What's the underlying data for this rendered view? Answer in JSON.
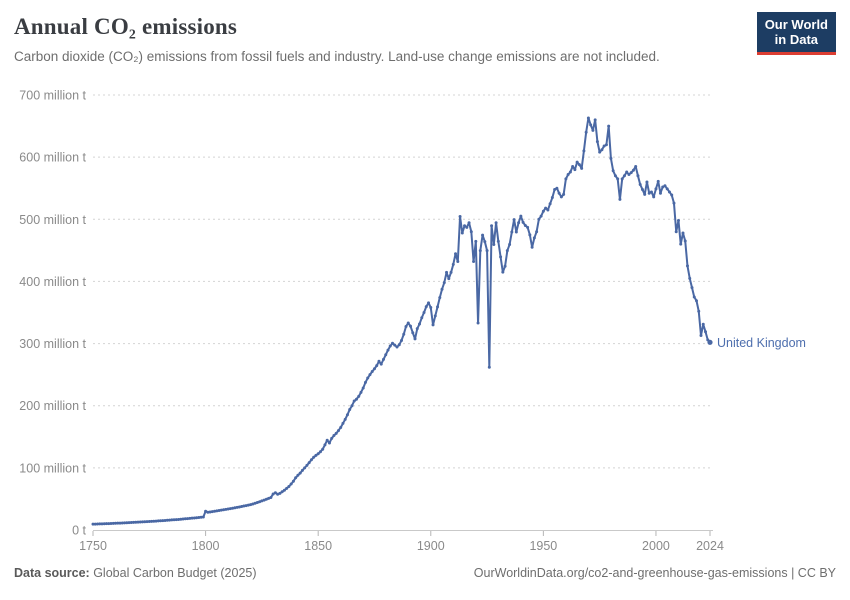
{
  "header": {
    "title": "Annual CO₂ emissions",
    "subtitle": "Carbon dioxide (CO₂) emissions from fossil fuels and industry. Land-use change emissions are not included.",
    "logo_line1": "Our World",
    "logo_line2": "in Data",
    "logo_bg": "#1d3d63",
    "logo_accent": "#dc3e32"
  },
  "footer": {
    "source_label": "Data source:",
    "source_value": " Global Carbon Budget (2025)",
    "right": "OurWorldinData.org/co2-and-greenhouse-gas-emissions | CC BY"
  },
  "chart_data": {
    "type": "line",
    "title": "Annual CO₂ emissions",
    "unit": "million tonnes of CO₂",
    "xlim": [
      1750,
      2024
    ],
    "ylim": [
      0,
      700
    ],
    "grid": "horizontal dashed",
    "legend_position": "end-of-line label",
    "x_ticks": [
      1750,
      1800,
      1850,
      1900,
      1950,
      2000,
      2024
    ],
    "y_ticks": [
      {
        "value": 0,
        "label": "0 t"
      },
      {
        "value": 100,
        "label": "100 million t"
      },
      {
        "value": 200,
        "label": "200 million t"
      },
      {
        "value": 300,
        "label": "300 million t"
      },
      {
        "value": 400,
        "label": "400 million t"
      },
      {
        "value": 500,
        "label": "500 million t"
      },
      {
        "value": 600,
        "label": "600 million t"
      },
      {
        "value": 700,
        "label": "700 million t"
      }
    ],
    "series": [
      {
        "name": "United Kingdom",
        "color": "#4a68a4",
        "label_color": "#4e6fae",
        "start_year": 1750,
        "values": [
          9.4,
          9.5,
          9.6,
          9.8,
          9.9,
          10,
          10.2,
          10.3,
          10.5,
          10.6,
          10.8,
          11,
          11.1,
          11.3,
          11.5,
          11.6,
          11.8,
          12,
          12.2,
          12.4,
          12.6,
          12.8,
          13,
          13.2,
          13.4,
          13.6,
          13.9,
          14.1,
          14.3,
          14.6,
          14.8,
          15.1,
          15.3,
          15.6,
          15.9,
          16.2,
          16.4,
          16.7,
          17,
          17.4,
          17.7,
          18,
          18.4,
          18.7,
          19.1,
          19.4,
          19.8,
          20.2,
          20.6,
          21,
          30.1,
          28.5,
          29,
          29.6,
          30.1,
          30.7,
          31.3,
          31.9,
          32.5,
          33.1,
          33.7,
          34.4,
          35,
          35.7,
          36.4,
          37.1,
          37.8,
          38.6,
          39.3,
          40.1,
          40.9,
          41.9,
          43,
          44.2,
          45.5,
          46.9,
          48,
          49.4,
          50.8,
          52.2,
          58,
          60,
          57.5,
          59,
          61.5,
          64,
          67,
          70,
          74,
          78.5,
          84,
          88,
          91.5,
          96,
          100,
          104,
          108.5,
          113,
          117,
          120,
          122.7,
          126,
          130,
          137,
          144.5,
          140,
          147.5,
          152,
          155.5,
          160,
          165,
          171.5,
          178,
          185.5,
          194,
          200,
          207.5,
          210.5,
          215,
          221.5,
          228.5,
          237.5,
          244.5,
          250,
          255,
          259.5,
          264.5,
          271.5,
          267,
          274.5,
          282,
          289.5,
          296,
          300.5,
          297.5,
          294.5,
          298,
          305,
          315,
          327.5,
          333,
          328,
          317.5,
          307.5,
          324,
          331.5,
          341.5,
          350,
          359.5,
          365.5,
          358,
          330,
          344.5,
          359,
          374,
          387.5,
          398,
          414.5,
          404.5,
          414.5,
          427.5,
          444.5,
          432,
          504.5,
          478,
          489.5,
          487,
          494.5,
          480,
          432,
          464.5,
          333,
          449.5,
          474.5,
          464,
          449.5,
          262,
          489.5,
          459.5,
          494.5,
          464.5,
          439.5,
          415,
          424.5,
          449.5,
          459.5,
          479.5,
          499.5,
          479.5,
          494.5,
          505,
          495,
          490,
          487,
          475,
          455,
          470,
          480,
          500,
          505,
          513,
          518,
          515,
          525,
          535,
          548,
          550,
          542,
          536,
          540,
          565,
          572,
          576,
          585,
          580,
          592,
          588,
          582,
          610,
          640,
          663,
          652,
          643,
          660,
          625,
          608,
          612,
          618,
          620,
          650,
          598,
          578,
          570,
          565,
          532,
          565,
          570,
          576,
          572,
          575,
          579,
          585,
          570,
          556,
          548,
          540,
          560,
          542,
          544,
          536,
          549,
          561,
          542,
          552,
          554,
          549,
          544,
          539,
          526,
          480,
          498,
          460,
          478,
          465,
          425,
          405,
          390,
          375,
          369,
          352,
          313,
          331,
          319,
          306,
          302
        ]
      }
    ]
  }
}
